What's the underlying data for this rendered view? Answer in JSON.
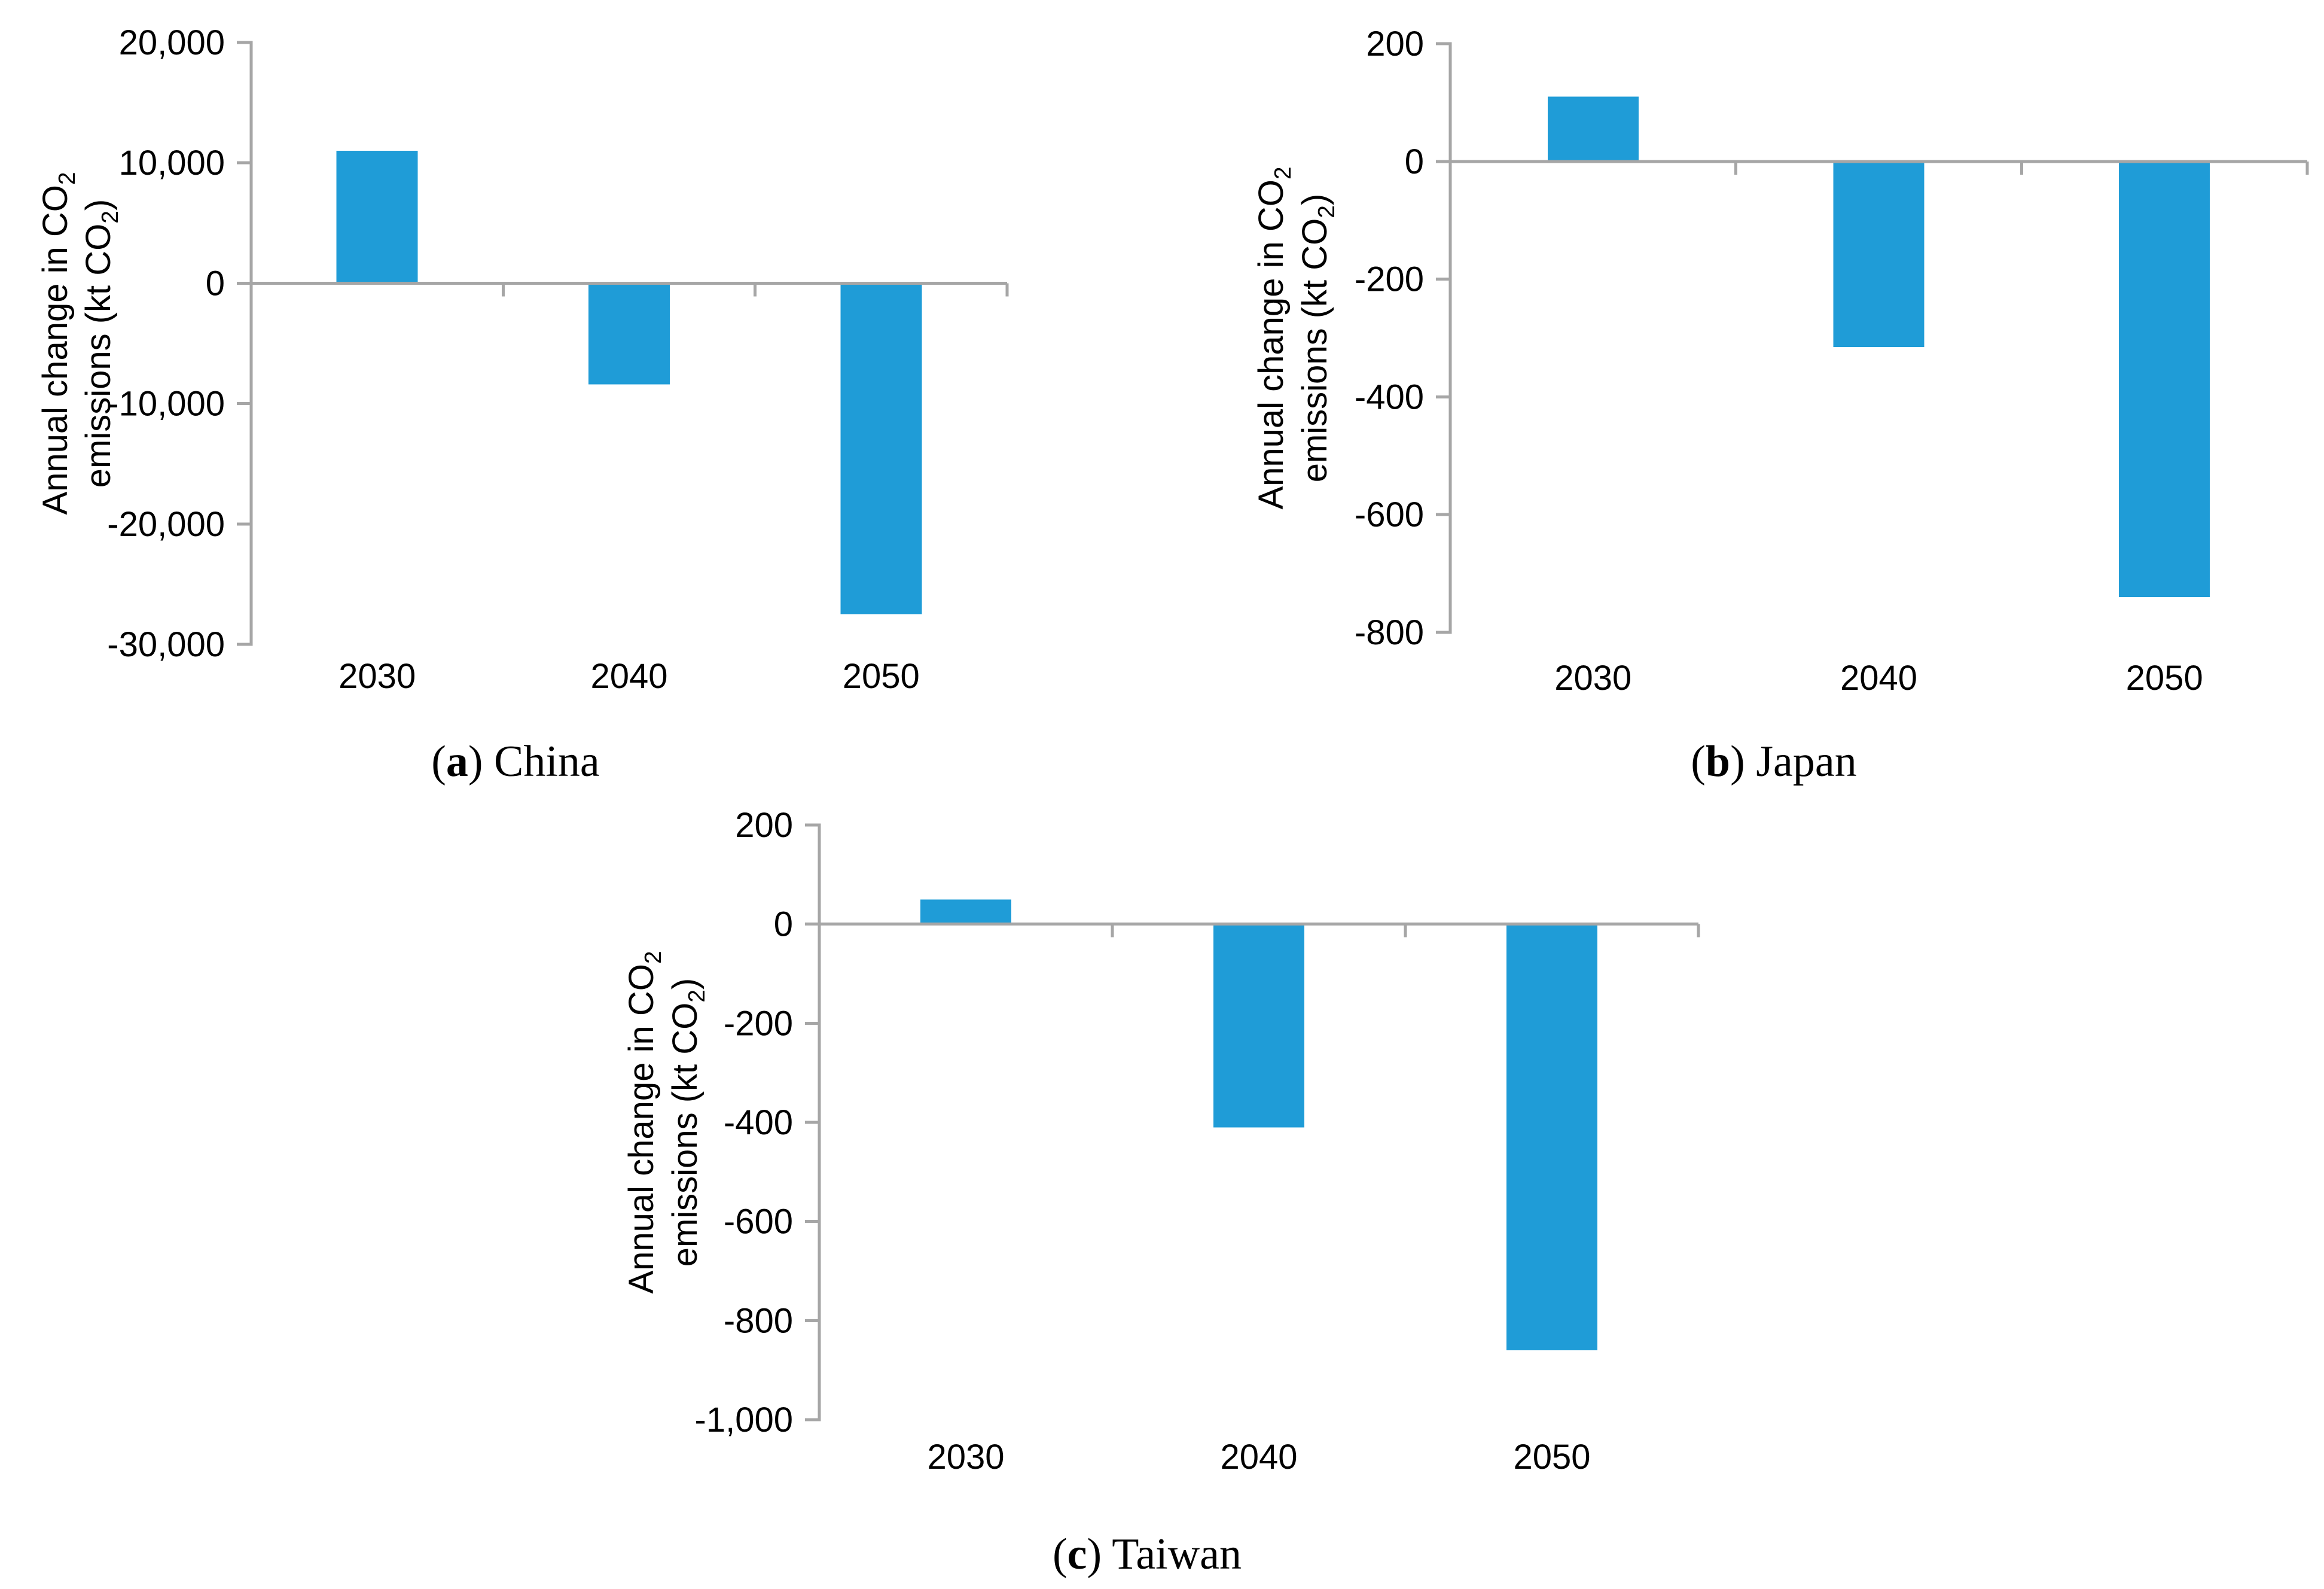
{
  "figure": {
    "background_color": "#ffffff",
    "bar_color": "#1F9CD7",
    "axis_color": "#A6A6A6",
    "text_color": "#000000"
  },
  "chart_data": [
    {
      "type": "bar",
      "panel": "a",
      "caption": {
        "prefix": "(",
        "letter": "a",
        "suffix": ") ",
        "name": "China"
      },
      "categories": [
        "2030",
        "2040",
        "2050"
      ],
      "values": [
        11000,
        -8400,
        -27500
      ],
      "title": "(a) China",
      "xlabel": "",
      "ylabel": "Annual change in CO2 emissions (kt CO2)",
      "ylabel_lines": [
        "Annual change in CO2",
        "emissions (kt CO2)"
      ],
      "ylim": [
        -30000,
        20000
      ],
      "ytick_step": 10000,
      "yticks": [
        {
          "value": 20000,
          "label": "20,000"
        },
        {
          "value": 10000,
          "label": "10,000"
        },
        {
          "value": 0,
          "label": "0"
        },
        {
          "value": -10000,
          "label": "-10,000"
        },
        {
          "value": -20000,
          "label": "-20,000"
        },
        {
          "value": -30000,
          "label": "-30,000"
        }
      ],
      "legend": "none",
      "grid": false
    },
    {
      "type": "bar",
      "panel": "b",
      "caption": {
        "prefix": "(",
        "letter": "b",
        "suffix": ") ",
        "name": "Japan"
      },
      "categories": [
        "2030",
        "2040",
        "2050"
      ],
      "values": [
        110,
        -315,
        -740
      ],
      "title": "(b) Japan",
      "xlabel": "",
      "ylabel": "Annual change in CO2 emissions (kt CO2)",
      "ylabel_lines": [
        "Annual change in CO2",
        "emissions (kt CO2)"
      ],
      "ylim": [
        -800,
        200
      ],
      "ytick_step": 200,
      "yticks": [
        {
          "value": 200,
          "label": "200"
        },
        {
          "value": 0,
          "label": "0"
        },
        {
          "value": -200,
          "label": "-200"
        },
        {
          "value": -400,
          "label": "-400"
        },
        {
          "value": -600,
          "label": "-600"
        },
        {
          "value": -800,
          "label": "-800"
        }
      ],
      "legend": "none",
      "grid": false
    },
    {
      "type": "bar",
      "panel": "c",
      "caption": {
        "prefix": "(",
        "letter": "c",
        "suffix": ") ",
        "name": "Taiwan"
      },
      "categories": [
        "2030",
        "2040",
        "2050"
      ],
      "values": [
        50,
        -410,
        -860
      ],
      "title": "(c) Taiwan",
      "xlabel": "",
      "ylabel": "Annual change in CO2 emissions (kt CO2)",
      "ylabel_lines": [
        "Annual change in CO2",
        "emissions (kt CO2)"
      ],
      "ylim": [
        -1000,
        200
      ],
      "ytick_step": 200,
      "yticks": [
        {
          "value": 200,
          "label": "200"
        },
        {
          "value": 0,
          "label": "0"
        },
        {
          "value": -200,
          "label": "-200"
        },
        {
          "value": -400,
          "label": "-400"
        },
        {
          "value": -600,
          "label": "-600"
        },
        {
          "value": -800,
          "label": "-800"
        },
        {
          "value": -1000,
          "label": "-1,000"
        }
      ],
      "legend": "none",
      "grid": false
    }
  ]
}
